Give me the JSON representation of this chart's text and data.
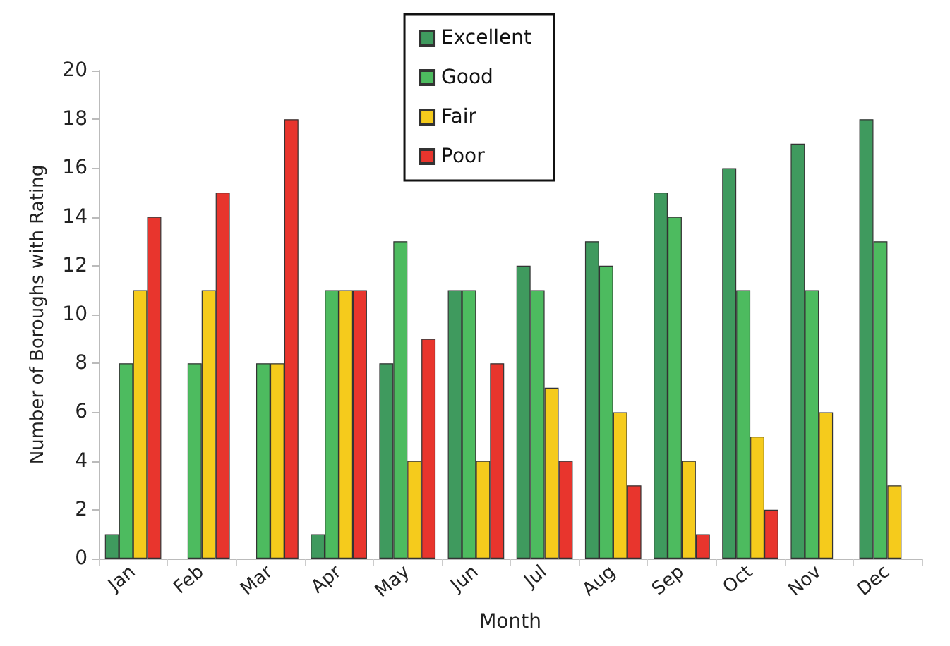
{
  "chart_data": {
    "type": "bar",
    "xlabel": "Month",
    "ylabel": "Number of Boroughs with Rating",
    "categories": [
      "Jan",
      "Feb",
      "Mar",
      "Apr",
      "May",
      "Jun",
      "Jul",
      "Aug",
      "Sep",
      "Oct",
      "Nov",
      "Dec"
    ],
    "series": [
      {
        "name": "Excellent",
        "color": "#3f9a5e",
        "values": [
          1,
          0,
          0,
          1,
          8,
          11,
          12,
          13,
          15,
          16,
          17,
          18
        ]
      },
      {
        "name": "Good",
        "color": "#4dbb5f",
        "values": [
          8,
          8,
          8,
          11,
          13,
          11,
          11,
          12,
          14,
          11,
          11,
          13
        ]
      },
      {
        "name": "Fair",
        "color": "#f5cb1c",
        "values": [
          11,
          11,
          8,
          11,
          4,
          4,
          7,
          6,
          4,
          5,
          6,
          3
        ]
      },
      {
        "name": "Poor",
        "color": "#e8352d",
        "values": [
          14,
          15,
          18,
          11,
          9,
          8,
          4,
          3,
          1,
          2,
          0,
          0
        ]
      }
    ],
    "ylim": [
      0,
      20
    ],
    "yticks": [
      0,
      2,
      4,
      6,
      8,
      10,
      12,
      14,
      16,
      18,
      20
    ],
    "grid": false,
    "legend": "top"
  }
}
